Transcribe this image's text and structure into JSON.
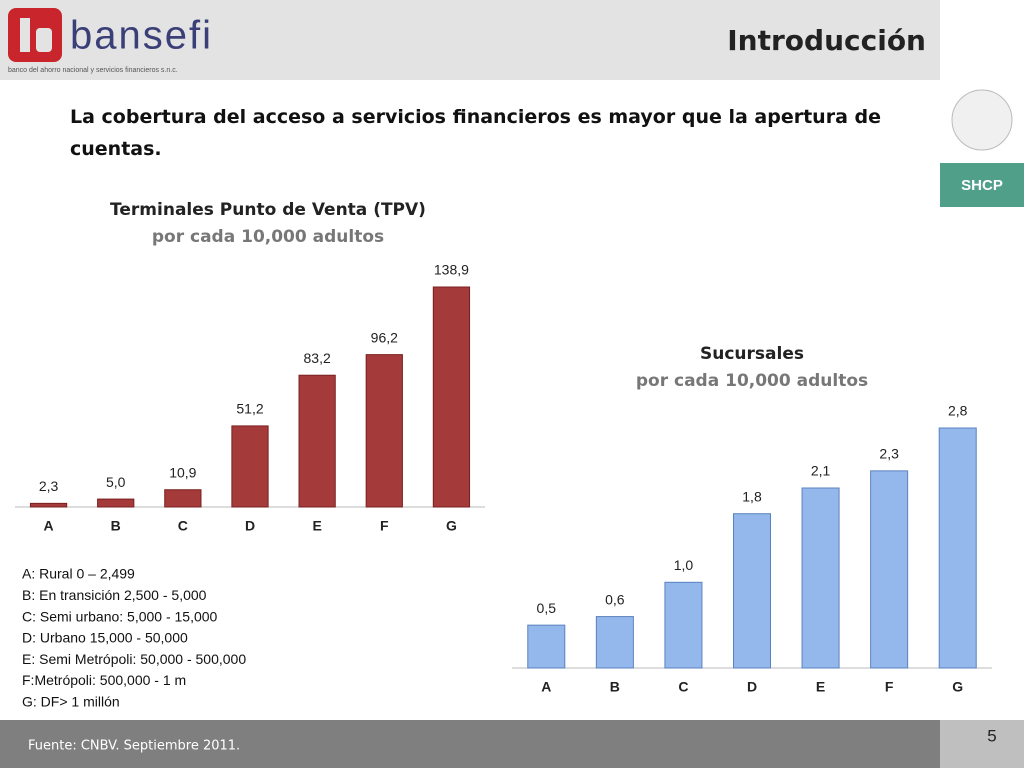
{
  "header": {
    "logo_text": "bansefi",
    "logo_subtitle": "banco del ahorro nacional y servicios financieros s.n.c.",
    "title": "Introducción",
    "side_label": "SHCP"
  },
  "headline": "La cobertura del acceso a servicios financieros es mayor que la apertura de cuentas.",
  "chart_data": [
    {
      "type": "bar",
      "title": "Terminales Punto de Venta (TPV)",
      "subtitle": "por cada 10,000 adultos",
      "categories": [
        "A",
        "B",
        "C",
        "D",
        "E",
        "F",
        "G"
      ],
      "values": [
        2.3,
        5.0,
        10.9,
        51.2,
        83.2,
        96.2,
        138.9
      ],
      "value_labels": [
        "2,3",
        "5,0",
        "10,9",
        "51,2",
        "83,2",
        "96,2",
        "138,9"
      ],
      "color": "#a53a3a"
    },
    {
      "type": "bar",
      "title": "Sucursales",
      "subtitle": "por cada 10,000 adultos",
      "categories": [
        "A",
        "B",
        "C",
        "D",
        "E",
        "F",
        "G"
      ],
      "values": [
        0.5,
        0.6,
        1.0,
        1.8,
        2.1,
        2.3,
        2.8
      ],
      "value_labels": [
        "0,5",
        "0,6",
        "1,0",
        "1,8",
        "2,1",
        "2,3",
        "2,8"
      ],
      "color": "#95b8ec"
    }
  ],
  "notes": [
    "A: Rural 0 – 2,499",
    "B: En transición 2,500 - 5,000",
    "C: Semi urbano: 5,000 - 15,000",
    "D: Urbano 15,000 - 50,000",
    "E: Semi Metrópoli: 50,000 - 500,000",
    "F:Metrópoli: 500,000 - 1 m",
    "G: DF> 1 millón"
  ],
  "footer": {
    "source": "Fuente: CNBV. Septiembre 2011.",
    "page": 5
  }
}
